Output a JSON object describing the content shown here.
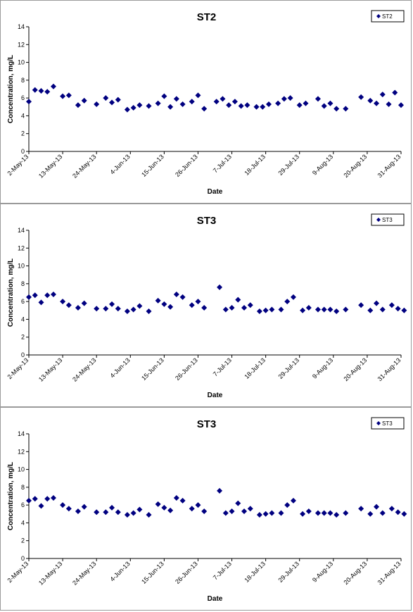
{
  "chart_data": [
    {
      "type": "scatter",
      "title": "ST2",
      "xlabel": "Date",
      "ylabel": "Concentration, mg/L",
      "ylim": [
        0,
        14
      ],
      "yticks": [
        "0",
        "2",
        "4",
        "6",
        "8",
        "10",
        "12",
        "14"
      ],
      "xlim": [
        "2013-05-02",
        "2013-08-31"
      ],
      "xticks": [
        "2-May-13",
        "13-May-13",
        "24-May-13",
        "4-Jun-13",
        "15-Jun-13",
        "26-Jun-13",
        "7-Jul-13",
        "18-Jul-13",
        "29-Jul-13",
        "9-Aug-13",
        "20-Aug-13",
        "31-Aug-13"
      ],
      "legend": "top-right",
      "marker_color": "#000080",
      "series": [
        {
          "name": "ST2",
          "points": [
            [
              "2013-05-02",
              5.6
            ],
            [
              "2013-05-04",
              6.9
            ],
            [
              "2013-05-06",
              6.8
            ],
            [
              "2013-05-08",
              6.7
            ],
            [
              "2013-05-10",
              7.3
            ],
            [
              "2013-05-13",
              6.2
            ],
            [
              "2013-05-15",
              6.3
            ],
            [
              "2013-05-18",
              5.2
            ],
            [
              "2013-05-20",
              5.7
            ],
            [
              "2013-05-24",
              5.3
            ],
            [
              "2013-05-27",
              6.0
            ],
            [
              "2013-05-29",
              5.5
            ],
            [
              "2013-05-31",
              5.8
            ],
            [
              "2013-06-03",
              4.7
            ],
            [
              "2013-06-05",
              4.9
            ],
            [
              "2013-06-07",
              5.2
            ],
            [
              "2013-06-10",
              5.1
            ],
            [
              "2013-06-13",
              5.4
            ],
            [
              "2013-06-15",
              6.2
            ],
            [
              "2013-06-17",
              5.0
            ],
            [
              "2013-06-19",
              5.9
            ],
            [
              "2013-06-21",
              5.3
            ],
            [
              "2013-06-24",
              5.6
            ],
            [
              "2013-06-26",
              6.3
            ],
            [
              "2013-06-28",
              4.8
            ],
            [
              "2013-07-02",
              5.6
            ],
            [
              "2013-07-04",
              5.9
            ],
            [
              "2013-07-06",
              5.2
            ],
            [
              "2013-07-08",
              5.6
            ],
            [
              "2013-07-10",
              5.1
            ],
            [
              "2013-07-12",
              5.2
            ],
            [
              "2013-07-15",
              5.0
            ],
            [
              "2013-07-17",
              5.0
            ],
            [
              "2013-07-19",
              5.3
            ],
            [
              "2013-07-22",
              5.4
            ],
            [
              "2013-07-24",
              5.9
            ],
            [
              "2013-07-26",
              6.0
            ],
            [
              "2013-07-29",
              5.2
            ],
            [
              "2013-07-31",
              5.4
            ],
            [
              "2013-08-04",
              5.9
            ],
            [
              "2013-08-06",
              5.1
            ],
            [
              "2013-08-08",
              5.4
            ],
            [
              "2013-08-10",
              4.8
            ],
            [
              "2013-08-13",
              4.8
            ],
            [
              "2013-08-18",
              6.1
            ],
            [
              "2013-08-21",
              5.7
            ],
            [
              "2013-08-23",
              5.4
            ],
            [
              "2013-08-25",
              6.4
            ],
            [
              "2013-08-27",
              5.3
            ],
            [
              "2013-08-29",
              6.6
            ],
            [
              "2013-08-31",
              5.2
            ]
          ]
        }
      ]
    },
    {
      "type": "scatter",
      "title": "ST3",
      "xlabel": "Date",
      "ylabel": "Concentration, mg/L",
      "ylim": [
        0,
        14
      ],
      "yticks": [
        "0",
        "2",
        "4",
        "6",
        "8",
        "10",
        "12",
        "14"
      ],
      "xlim": [
        "2013-05-02",
        "2013-08-31"
      ],
      "xticks": [
        "2-May-13",
        "13-May-13",
        "24-May-13",
        "4-Jun-13",
        "15-Jun-13",
        "26-Jun-13",
        "7-Jul-13",
        "18-Jul-13",
        "29-Jul-13",
        "9-Aug-13",
        "20-Aug-13",
        "31-Aug-13"
      ],
      "legend": "top-right",
      "marker_color": "#000080",
      "series": [
        {
          "name": "ST3",
          "points": [
            [
              "2013-05-02",
              6.5
            ],
            [
              "2013-05-04",
              6.7
            ],
            [
              "2013-05-06",
              5.9
            ],
            [
              "2013-05-08",
              6.7
            ],
            [
              "2013-05-10",
              6.8
            ],
            [
              "2013-05-13",
              6.0
            ],
            [
              "2013-05-15",
              5.6
            ],
            [
              "2013-05-18",
              5.3
            ],
            [
              "2013-05-20",
              5.8
            ],
            [
              "2013-05-24",
              5.2
            ],
            [
              "2013-05-27",
              5.2
            ],
            [
              "2013-05-29",
              5.7
            ],
            [
              "2013-05-31",
              5.2
            ],
            [
              "2013-06-03",
              4.9
            ],
            [
              "2013-06-05",
              5.1
            ],
            [
              "2013-06-07",
              5.5
            ],
            [
              "2013-06-10",
              4.9
            ],
            [
              "2013-06-13",
              6.1
            ],
            [
              "2013-06-15",
              5.7
            ],
            [
              "2013-06-17",
              5.4
            ],
            [
              "2013-06-19",
              6.8
            ],
            [
              "2013-06-21",
              6.5
            ],
            [
              "2013-06-24",
              5.6
            ],
            [
              "2013-06-26",
              6.0
            ],
            [
              "2013-06-28",
              5.3
            ],
            [
              "2013-07-03",
              7.6
            ],
            [
              "2013-07-05",
              5.1
            ],
            [
              "2013-07-07",
              5.3
            ],
            [
              "2013-07-09",
              6.2
            ],
            [
              "2013-07-11",
              5.3
            ],
            [
              "2013-07-13",
              5.6
            ],
            [
              "2013-07-16",
              4.9
            ],
            [
              "2013-07-18",
              5.0
            ],
            [
              "2013-07-20",
              5.1
            ],
            [
              "2013-07-23",
              5.1
            ],
            [
              "2013-07-25",
              6.0
            ],
            [
              "2013-07-27",
              6.5
            ],
            [
              "2013-07-30",
              5.0
            ],
            [
              "2013-08-01",
              5.3
            ],
            [
              "2013-08-04",
              5.1
            ],
            [
              "2013-08-06",
              5.1
            ],
            [
              "2013-08-08",
              5.1
            ],
            [
              "2013-08-10",
              4.9
            ],
            [
              "2013-08-13",
              5.1
            ],
            [
              "2013-08-18",
              5.6
            ],
            [
              "2013-08-21",
              5.0
            ],
            [
              "2013-08-23",
              5.8
            ],
            [
              "2013-08-25",
              5.1
            ],
            [
              "2013-08-28",
              5.6
            ],
            [
              "2013-08-30",
              5.2
            ],
            [
              "2013-09-01",
              5.0
            ]
          ]
        }
      ]
    },
    {
      "type": "scatter",
      "title": "ST3",
      "xlabel": "Date",
      "ylabel": "Concentration, mg/L",
      "ylim": [
        0,
        14
      ],
      "yticks": [
        "0",
        "2",
        "4",
        "6",
        "8",
        "10",
        "12",
        "14"
      ],
      "xlim": [
        "2013-05-02",
        "2013-08-31"
      ],
      "xticks": [
        "2-May-13",
        "13-May-13",
        "24-May-13",
        "4-Jun-13",
        "15-Jun-13",
        "26-Jun-13",
        "7-Jul-13",
        "18-Jul-13",
        "29-Jul-13",
        "9-Aug-13",
        "20-Aug-13",
        "31-Aug-13"
      ],
      "legend": "top-right",
      "marker_color": "#000080",
      "series": [
        {
          "name": "ST3",
          "points": [
            [
              "2013-05-02",
              6.5
            ],
            [
              "2013-05-04",
              6.7
            ],
            [
              "2013-05-06",
              5.9
            ],
            [
              "2013-05-08",
              6.7
            ],
            [
              "2013-05-10",
              6.8
            ],
            [
              "2013-05-13",
              6.0
            ],
            [
              "2013-05-15",
              5.6
            ],
            [
              "2013-05-18",
              5.3
            ],
            [
              "2013-05-20",
              5.8
            ],
            [
              "2013-05-24",
              5.2
            ],
            [
              "2013-05-27",
              5.2
            ],
            [
              "2013-05-29",
              5.7
            ],
            [
              "2013-05-31",
              5.2
            ],
            [
              "2013-06-03",
              4.9
            ],
            [
              "2013-06-05",
              5.1
            ],
            [
              "2013-06-07",
              5.5
            ],
            [
              "2013-06-10",
              4.9
            ],
            [
              "2013-06-13",
              6.1
            ],
            [
              "2013-06-15",
              5.7
            ],
            [
              "2013-06-17",
              5.4
            ],
            [
              "2013-06-19",
              6.8
            ],
            [
              "2013-06-21",
              6.5
            ],
            [
              "2013-06-24",
              5.6
            ],
            [
              "2013-06-26",
              6.0
            ],
            [
              "2013-06-28",
              5.3
            ],
            [
              "2013-07-03",
              7.6
            ],
            [
              "2013-07-05",
              5.1
            ],
            [
              "2013-07-07",
              5.3
            ],
            [
              "2013-07-09",
              6.2
            ],
            [
              "2013-07-11",
              5.3
            ],
            [
              "2013-07-13",
              5.6
            ],
            [
              "2013-07-16",
              4.9
            ],
            [
              "2013-07-18",
              5.0
            ],
            [
              "2013-07-20",
              5.1
            ],
            [
              "2013-07-23",
              5.1
            ],
            [
              "2013-07-25",
              6.0
            ],
            [
              "2013-07-27",
              6.5
            ],
            [
              "2013-07-30",
              5.0
            ],
            [
              "2013-08-01",
              5.3
            ],
            [
              "2013-08-04",
              5.1
            ],
            [
              "2013-08-06",
              5.1
            ],
            [
              "2013-08-08",
              5.1
            ],
            [
              "2013-08-10",
              4.9
            ],
            [
              "2013-08-13",
              5.1
            ],
            [
              "2013-08-18",
              5.6
            ],
            [
              "2013-08-21",
              5.0
            ],
            [
              "2013-08-23",
              5.8
            ],
            [
              "2013-08-25",
              5.1
            ],
            [
              "2013-08-28",
              5.6
            ],
            [
              "2013-08-30",
              5.2
            ],
            [
              "2013-09-01",
              5.0
            ]
          ]
        }
      ]
    }
  ]
}
